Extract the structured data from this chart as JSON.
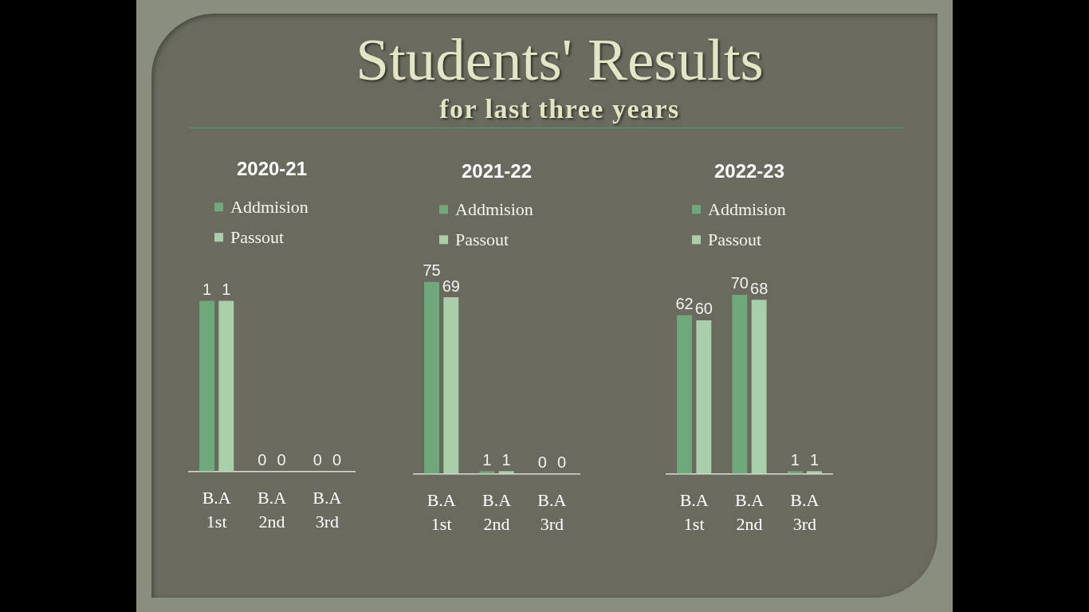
{
  "chart_data": [
    {
      "type": "other",
      "title": "Students' Results",
      "subtitle": "for last three years"
    },
    {
      "type": "bar",
      "title": "2020-21",
      "categories": [
        "B.A 1st",
        "B.A 2nd",
        "B.A 3rd"
      ],
      "series": [
        {
          "name": "Addmision",
          "color": "#6fa87a",
          "values": [
            1,
            0,
            0
          ]
        },
        {
          "name": "Passout",
          "color": "#a8cfaa",
          "values": [
            1,
            0,
            0
          ]
        }
      ],
      "data_labels": true,
      "legend": "top left",
      "grid": false,
      "tick_labels": "x"
    },
    {
      "type": "bar",
      "title": "2021-22",
      "categories": [
        "B.A 1st",
        "B.A 2nd",
        "B.A 3rd"
      ],
      "series": [
        {
          "name": "Addmision",
          "color": "#6fa87a",
          "values": [
            75,
            1,
            0
          ]
        },
        {
          "name": "Passout",
          "color": "#a8cfaa",
          "values": [
            69,
            1,
            0
          ]
        }
      ],
      "data_labels": true,
      "legend": "top left",
      "grid": false,
      "tick_labels": "x"
    },
    {
      "type": "bar",
      "title": "2022-23",
      "categories": [
        "B.A 1st",
        "B.A 2nd",
        "B.A 3rd"
      ],
      "series": [
        {
          "name": "Addmision",
          "color": "#6fa87a",
          "values": [
            62,
            70,
            1
          ]
        },
        {
          "name": "Passout",
          "color": "#a8cfaa",
          "values": [
            60,
            68,
            1
          ]
        }
      ],
      "data_labels": true,
      "legend": "top left",
      "grid": false,
      "tick_labels": "x"
    }
  ]
}
